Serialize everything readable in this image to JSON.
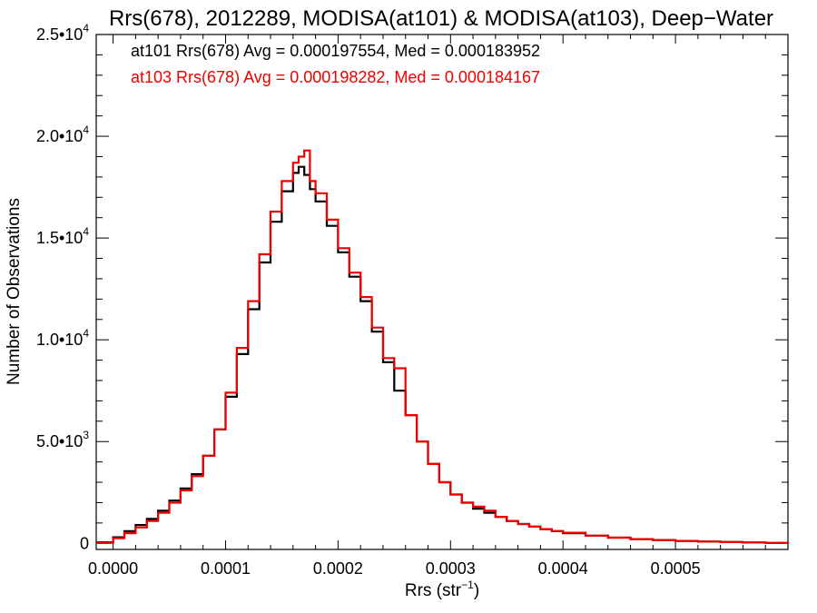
{
  "chart_data": {
    "type": "line",
    "title": "Rrs(678), 2012289, MODISA(at101) & MODISA(at103), Deep−Water",
    "xlabel": "Rrs (str",
    "xlabel_sup": "−1",
    "xlabel_end": ")",
    "ylabel": "Number of Observations",
    "xlim": [
      -1.5e-05,
      0.0006
    ],
    "ylim": [
      -300,
      25000
    ],
    "x_ticks": [
      {
        "value": 0.0,
        "label": "0.0000"
      },
      {
        "value": 0.0001,
        "label": "0.0001"
      },
      {
        "value": 0.0002,
        "label": "0.0002"
      },
      {
        "value": 0.0003,
        "label": "0.0003"
      },
      {
        "value": 0.0004,
        "label": "0.0004"
      },
      {
        "value": 0.0005,
        "label": "0.0005"
      }
    ],
    "x_minor_step": 2e-05,
    "y_ticks": [
      {
        "value": 0,
        "base": "0",
        "exp": ""
      },
      {
        "value": 5000,
        "base": "5.0•10",
        "exp": "3"
      },
      {
        "value": 10000,
        "base": "1.0•10",
        "exp": "4"
      },
      {
        "value": 15000,
        "base": "1.5•10",
        "exp": "4"
      },
      {
        "value": 20000,
        "base": "2.0•10",
        "exp": "4"
      },
      {
        "value": 25000,
        "base": "2.5•10",
        "exp": "4"
      }
    ],
    "y_minor_step": 1000,
    "grid": false,
    "legend_position": "top-left",
    "series": [
      {
        "name": "at101 Rrs(678) Avg = 0.000197554, Med = 0.000183952",
        "color": "#000000",
        "x": [
          -1.5e-05,
          0.0,
          1e-05,
          2e-05,
          3e-05,
          4e-05,
          5e-05,
          6e-05,
          7e-05,
          8e-05,
          9e-05,
          0.0001,
          0.00011,
          0.00012,
          0.00013,
          0.00014,
          0.00015,
          0.00016,
          0.000165,
          0.00017,
          0.000175,
          0.00018,
          0.00019,
          0.0002,
          0.00021,
          0.00022,
          0.00023,
          0.00024,
          0.00025,
          0.00026,
          0.00027,
          0.00028,
          0.00029,
          0.0003,
          0.00031,
          0.00032,
          0.00033,
          0.00034,
          0.00035,
          0.00036,
          0.00037,
          0.00038,
          0.00039,
          0.0004,
          0.00042,
          0.00044,
          0.00046,
          0.00048,
          0.0005,
          0.00052,
          0.00054,
          0.00056,
          0.00058,
          0.0006
        ],
        "values": [
          50,
          300,
          600,
          900,
          1200,
          1600,
          2100,
          2700,
          3400,
          4300,
          5600,
          7200,
          9300,
          11500,
          13800,
          15800,
          17300,
          18200,
          18500,
          18100,
          17400,
          16800,
          15600,
          14300,
          13100,
          11900,
          10400,
          8900,
          7500,
          6300,
          5000,
          3900,
          3000,
          2400,
          2000,
          1700,
          1500,
          1300,
          1100,
          950,
          820,
          700,
          600,
          500,
          380,
          280,
          210,
          160,
          120,
          90,
          60,
          40,
          20,
          0
        ]
      },
      {
        "name": "at103 Rrs(678) Avg = 0.000198282, Med = 0.000184167",
        "color": "#ee0000",
        "x": [
          -1.5e-05,
          0.0,
          1e-05,
          2e-05,
          3e-05,
          4e-05,
          5e-05,
          6e-05,
          7e-05,
          8e-05,
          9e-05,
          0.0001,
          0.00011,
          0.00012,
          0.00013,
          0.00014,
          0.00015,
          0.00016,
          0.000165,
          0.00017,
          0.000175,
          0.00018,
          0.00019,
          0.0002,
          0.00021,
          0.00022,
          0.00023,
          0.00024,
          0.00025,
          0.00026,
          0.00027,
          0.00028,
          0.00029,
          0.0003,
          0.00031,
          0.00032,
          0.00033,
          0.00034,
          0.00035,
          0.00036,
          0.00037,
          0.00038,
          0.00039,
          0.0004,
          0.00042,
          0.00044,
          0.00046,
          0.00048,
          0.0005,
          0.00052,
          0.00054,
          0.00056,
          0.00058,
          0.0006
        ],
        "values": [
          20,
          250,
          500,
          780,
          1100,
          1500,
          2000,
          2600,
          3300,
          4300,
          5600,
          7400,
          9600,
          11900,
          14200,
          16300,
          17800,
          18700,
          19000,
          19300,
          17800,
          17200,
          15900,
          14500,
          13300,
          12100,
          10600,
          9100,
          8600,
          6300,
          5000,
          3900,
          3000,
          2400,
          2000,
          1800,
          1600,
          1300,
          1100,
          950,
          820,
          700,
          600,
          520,
          380,
          280,
          210,
          160,
          120,
          90,
          60,
          40,
          20,
          0
        ]
      }
    ]
  }
}
